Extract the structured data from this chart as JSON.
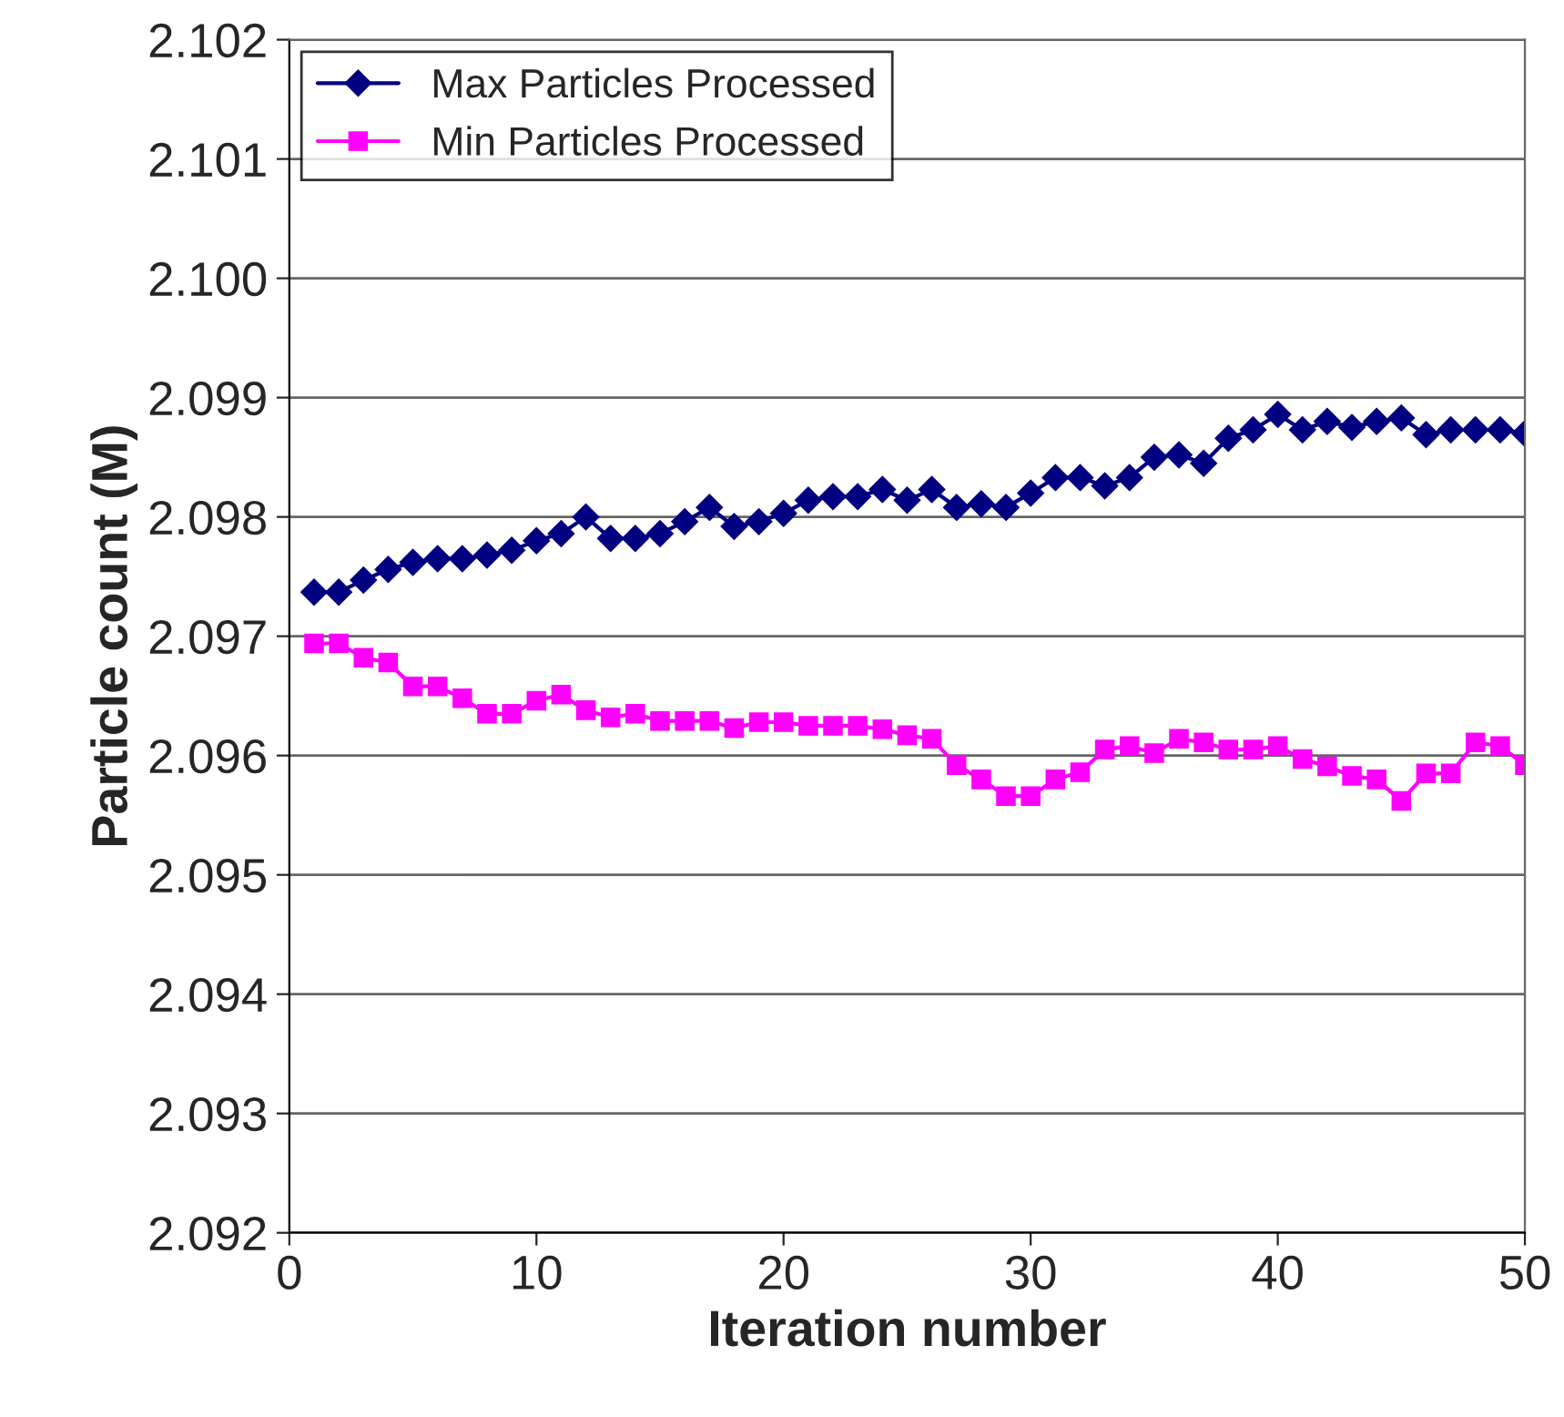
{
  "chart_data": {
    "type": "line",
    "xlabel": "Iteration number",
    "ylabel": "Particle count (M)",
    "x": [
      1,
      2,
      3,
      4,
      5,
      6,
      7,
      8,
      9,
      10,
      11,
      12,
      13,
      14,
      15,
      16,
      17,
      18,
      19,
      20,
      21,
      22,
      23,
      24,
      25,
      26,
      27,
      28,
      29,
      30,
      31,
      32,
      33,
      34,
      35,
      36,
      37,
      38,
      39,
      40,
      41,
      42,
      43,
      44,
      45,
      46,
      47,
      48,
      49,
      50
    ],
    "series": [
      {
        "name": "Max Particles Processed",
        "color": "#000080",
        "marker": "diamond",
        "values": [
          2.09737,
          2.09737,
          2.09747,
          2.09756,
          2.09762,
          2.09765,
          2.09765,
          2.09768,
          2.09772,
          2.0978,
          2.09786,
          2.098,
          2.09782,
          2.09782,
          2.09786,
          2.09796,
          2.09808,
          2.09792,
          2.09796,
          2.09803,
          2.09814,
          2.09817,
          2.09817,
          2.09823,
          2.09814,
          2.09823,
          2.09808,
          2.09811,
          2.09808,
          2.0982,
          2.09833,
          2.09833,
          2.09826,
          2.09833,
          2.0985,
          2.09852,
          2.09845,
          2.09866,
          2.09873,
          2.09886,
          2.09873,
          2.0988,
          2.09875,
          2.0988,
          2.09883,
          2.09869,
          2.09873,
          2.09873,
          2.09873,
          2.0987
        ]
      },
      {
        "name": "Min Particles Processed",
        "color": "#ff00ff",
        "marker": "square",
        "values": [
          2.09694,
          2.09694,
          2.09682,
          2.09678,
          2.09658,
          2.09658,
          2.09648,
          2.09635,
          2.09635,
          2.09646,
          2.09651,
          2.09638,
          2.09632,
          2.09635,
          2.09629,
          2.09629,
          2.09629,
          2.09623,
          2.09628,
          2.09628,
          2.09625,
          2.09625,
          2.09625,
          2.09622,
          2.09617,
          2.09614,
          2.09592,
          2.0958,
          2.09566,
          2.09566,
          2.0958,
          2.09586,
          2.09605,
          2.09608,
          2.09602,
          2.09614,
          2.09611,
          2.09605,
          2.09605,
          2.09608,
          2.09597,
          2.09591,
          2.09583,
          2.0958,
          2.09562,
          2.09585,
          2.09585,
          2.09611,
          2.09608,
          2.09592
        ]
      }
    ],
    "xlim": [
      0,
      50
    ],
    "xticks": [
      0,
      10,
      20,
      30,
      40,
      50
    ],
    "ylim": [
      2.092,
      2.102
    ],
    "yticks": [
      {
        "value": 2.092,
        "label": "2.092"
      },
      {
        "value": 2.093,
        "label": "2.093"
      },
      {
        "value": 2.094,
        "label": "2.094"
      },
      {
        "value": 2.095,
        "label": "2.095"
      },
      {
        "value": 2.096,
        "label": "2.096"
      },
      {
        "value": 2.097,
        "label": "2.097"
      },
      {
        "value": 2.098,
        "label": "2.098"
      },
      {
        "value": 2.099,
        "label": "2.099"
      },
      {
        "value": 2.1,
        "label": "2.100"
      },
      {
        "value": 2.101,
        "label": "2.101"
      },
      {
        "value": 2.102,
        "label": "2.102"
      }
    ],
    "grid": "y",
    "legend": "top left",
    "line_style": "solid"
  }
}
